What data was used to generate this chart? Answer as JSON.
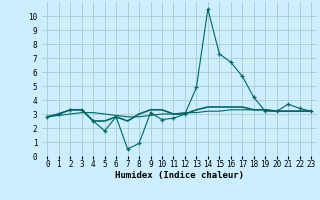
{
  "xlabel": "Humidex (Indice chaleur)",
  "background_color": "#cceeff",
  "grid_color": "#aacccc",
  "line_color": "#006666",
  "x_values": [
    0,
    1,
    2,
    3,
    4,
    5,
    6,
    7,
    8,
    9,
    10,
    11,
    12,
    13,
    14,
    15,
    16,
    17,
    18,
    19,
    20,
    21,
    22,
    23
  ],
  "series1": [
    2.8,
    3.0,
    3.3,
    3.3,
    2.5,
    1.8,
    2.8,
    0.5,
    0.9,
    3.1,
    2.6,
    2.7,
    3.0,
    4.9,
    10.5,
    7.3,
    6.7,
    5.7,
    4.2,
    3.2,
    3.2,
    3.7,
    3.4,
    3.2
  ],
  "series2": [
    2.8,
    3.0,
    3.3,
    3.3,
    2.5,
    2.5,
    2.8,
    2.5,
    3.0,
    3.3,
    3.3,
    3.0,
    3.0,
    3.3,
    3.5,
    3.5,
    3.5,
    3.5,
    3.3,
    3.3,
    3.2,
    3.2,
    3.2,
    3.2
  ],
  "series3": [
    2.8,
    2.9,
    3.0,
    3.1,
    3.1,
    3.0,
    2.9,
    2.8,
    2.8,
    2.9,
    3.0,
    3.0,
    3.1,
    3.1,
    3.2,
    3.2,
    3.3,
    3.3,
    3.3,
    3.3,
    3.2,
    3.2,
    3.2,
    3.2
  ],
  "ylim": [
    0,
    11
  ],
  "xlim": [
    -0.5,
    23.5
  ],
  "yticks": [
    0,
    1,
    2,
    3,
    4,
    5,
    6,
    7,
    8,
    9,
    10
  ],
  "xticks": [
    0,
    1,
    2,
    3,
    4,
    5,
    6,
    7,
    8,
    9,
    10,
    11,
    12,
    13,
    14,
    15,
    16,
    17,
    18,
    19,
    20,
    21,
    22,
    23
  ],
  "tick_fontsize": 5.5,
  "xlabel_fontsize": 6.5
}
